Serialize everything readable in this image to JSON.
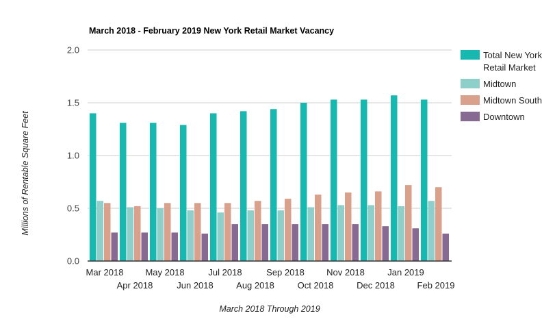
{
  "chart_data": {
    "type": "bar",
    "title": "March 2018 - February 2019 New York Retail Market Vacancy",
    "xlabel": "March 2018 Through 2019",
    "ylabel": "Millions of Rentable Square Feet",
    "ylim": [
      0,
      2.0
    ],
    "yticks": [
      "0.0",
      "0.5",
      "1.0",
      "1.5",
      "2.0"
    ],
    "ytick_values": [
      0,
      0.5,
      1.0,
      1.5,
      2.0
    ],
    "grid": true,
    "legend_position": "right",
    "categories": [
      "Mar 2018",
      "Apr 2018",
      "May 2018",
      "Jun 2018",
      "Jul 2018",
      "Aug 2018",
      "Sep 2018",
      "Oct 2018",
      "Nov 2018",
      "Dec 2018",
      "Jan 2019",
      "Feb 2019"
    ],
    "series": [
      {
        "name": "Total New York Retail Market",
        "legend_lines": [
          "Total New York",
          "Retail Market"
        ],
        "color": "#17b8b0",
        "values": [
          1.4,
          1.31,
          1.31,
          1.29,
          1.4,
          1.42,
          1.44,
          1.5,
          1.53,
          1.53,
          1.57,
          1.53
        ]
      },
      {
        "name": "Midtown",
        "color": "#8ecfc9",
        "values": [
          0.57,
          0.51,
          0.5,
          0.48,
          0.46,
          0.48,
          0.48,
          0.51,
          0.53,
          0.53,
          0.52,
          0.57
        ]
      },
      {
        "name": "Midtown South",
        "color": "#d9a18b",
        "values": [
          0.55,
          0.52,
          0.55,
          0.55,
          0.55,
          0.57,
          0.59,
          0.63,
          0.65,
          0.66,
          0.72,
          0.7
        ]
      },
      {
        "name": "Downtown",
        "color": "#866a91",
        "values": [
          0.27,
          0.27,
          0.27,
          0.26,
          0.35,
          0.35,
          0.35,
          0.35,
          0.35,
          0.33,
          0.31,
          0.26
        ]
      }
    ]
  }
}
